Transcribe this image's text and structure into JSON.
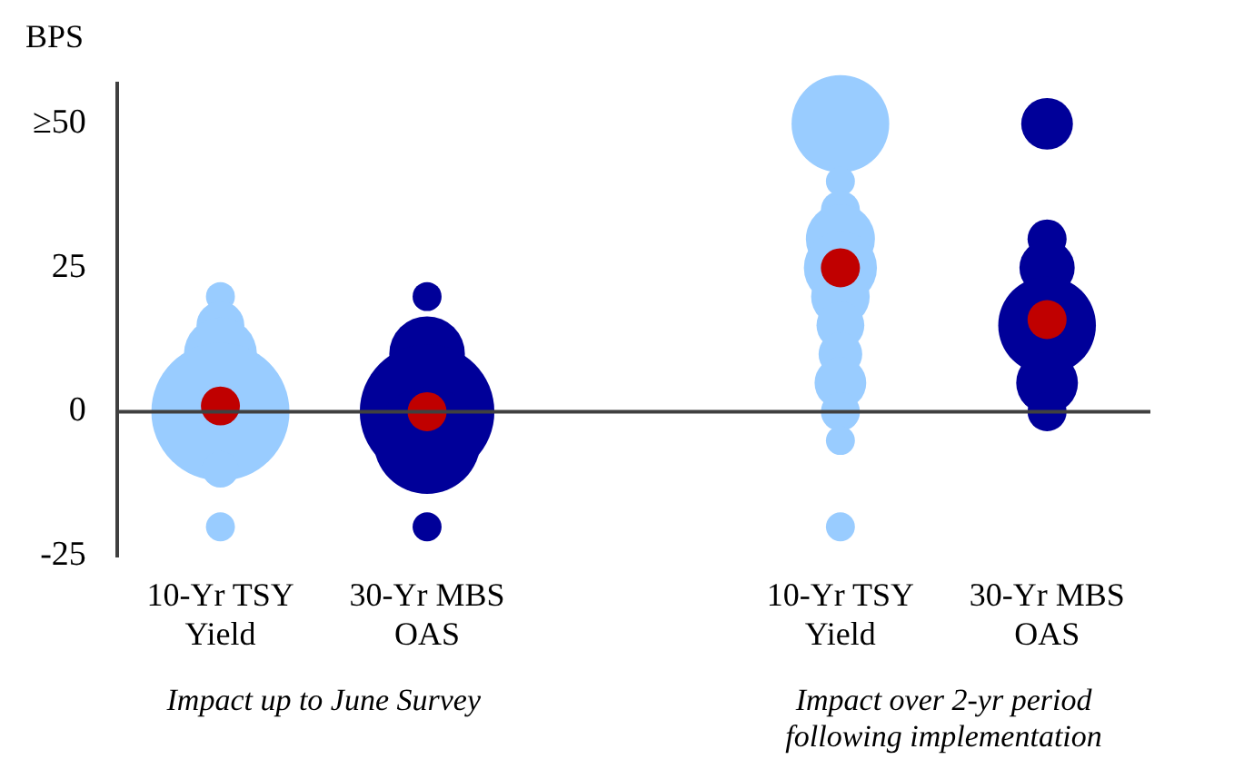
{
  "chart_data": {
    "type": "bubble",
    "categories": [
      "10-Yr TSY Yield",
      "30-Yr MBS OAS",
      null,
      "10-Yr TSY Yield",
      "30-Yr MBS OAS"
    ],
    "ylabel": "BPS",
    "ylim": [
      -25,
      57
    ],
    "yticks": [
      {
        "value": 50,
        "label": "≥50"
      },
      25,
      0,
      -25
    ],
    "annotations": [
      "Impact up to June Survey",
      "Impact over 2-yr period following implementation"
    ],
    "ref_lines": [
      {
        "axis": "y",
        "value": 0,
        "color": "#404040"
      }
    ],
    "series": [
      {
        "color": "#99ccff",
        "values": [
          20,
          null,
          null,
          50,
          null
        ],
        "sizes": [
          0.044,
          null,
          null,
          0.5,
          null
        ]
      },
      {
        "color": "#99ccff",
        "values": [
          15,
          null,
          null,
          40,
          null
        ],
        "sizes": [
          0.12,
          null,
          null,
          0.044,
          null
        ]
      },
      {
        "color": "#99ccff",
        "values": [
          10,
          null,
          null,
          35,
          null
        ],
        "sizes": [
          0.28,
          null,
          null,
          0.08,
          null
        ]
      },
      {
        "color": "#99ccff",
        "values": [
          0,
          null,
          null,
          30,
          null
        ],
        "sizes": [
          1,
          null,
          null,
          0.25,
          null
        ]
      },
      {
        "color": "#99ccff",
        "values": [
          -10,
          null,
          null,
          25,
          null
        ],
        "sizes": [
          0.07,
          null,
          null,
          0.28,
          null
        ]
      },
      {
        "color": "#99ccff",
        "values": [
          -20,
          null,
          null,
          20,
          null
        ],
        "sizes": [
          0.044,
          null,
          null,
          0.18,
          null
        ]
      },
      {
        "color": "#99ccff",
        "values": [
          null,
          null,
          null,
          15,
          null
        ],
        "sizes": [
          null,
          null,
          null,
          0.12,
          null
        ]
      },
      {
        "color": "#99ccff",
        "values": [
          null,
          null,
          null,
          10,
          null
        ],
        "sizes": [
          null,
          null,
          null,
          0.1,
          null
        ]
      },
      {
        "color": "#99ccff",
        "values": [
          null,
          null,
          null,
          5,
          null
        ],
        "sizes": [
          null,
          null,
          null,
          0.14,
          null
        ]
      },
      {
        "color": "#99ccff",
        "values": [
          null,
          null,
          null,
          0,
          null
        ],
        "sizes": [
          null,
          null,
          null,
          0.08,
          null
        ]
      },
      {
        "color": "#99ccff",
        "values": [
          null,
          null,
          null,
          -5,
          null
        ],
        "sizes": [
          null,
          null,
          null,
          0.044,
          null
        ]
      },
      {
        "color": "#99ccff",
        "values": [
          null,
          null,
          null,
          -20,
          null
        ],
        "sizes": [
          null,
          null,
          null,
          0.044,
          null
        ]
      },
      {
        "color": "#000099",
        "values": [
          null,
          20,
          null,
          null,
          50
        ],
        "sizes": [
          null,
          0.044,
          null,
          null,
          0.14
        ]
      },
      {
        "color": "#000099",
        "values": [
          null,
          10,
          null,
          null,
          30
        ],
        "sizes": [
          null,
          0.3,
          null,
          null,
          0.08
        ]
      },
      {
        "color": "#000099",
        "values": [
          null,
          0,
          null,
          null,
          25
        ],
        "sizes": [
          null,
          0.95,
          null,
          null,
          0.16
        ]
      },
      {
        "color": "#000099",
        "values": [
          null,
          -5,
          null,
          null,
          15
        ],
        "sizes": [
          null,
          0.6,
          null,
          null,
          0.5
        ]
      },
      {
        "color": "#000099",
        "values": [
          null,
          -20,
          null,
          null,
          5
        ],
        "sizes": [
          null,
          0.044,
          null,
          null,
          0.2
        ]
      },
      {
        "color": "#000099",
        "values": [
          null,
          null,
          null,
          null,
          0
        ],
        "sizes": [
          null,
          null,
          null,
          null,
          0.08
        ]
      },
      {
        "color": "#c00000",
        "values": [
          1,
          0,
          null,
          25,
          16
        ],
        "sizes": [
          0.08,
          0.08,
          null,
          0.08,
          0.08
        ]
      }
    ]
  }
}
